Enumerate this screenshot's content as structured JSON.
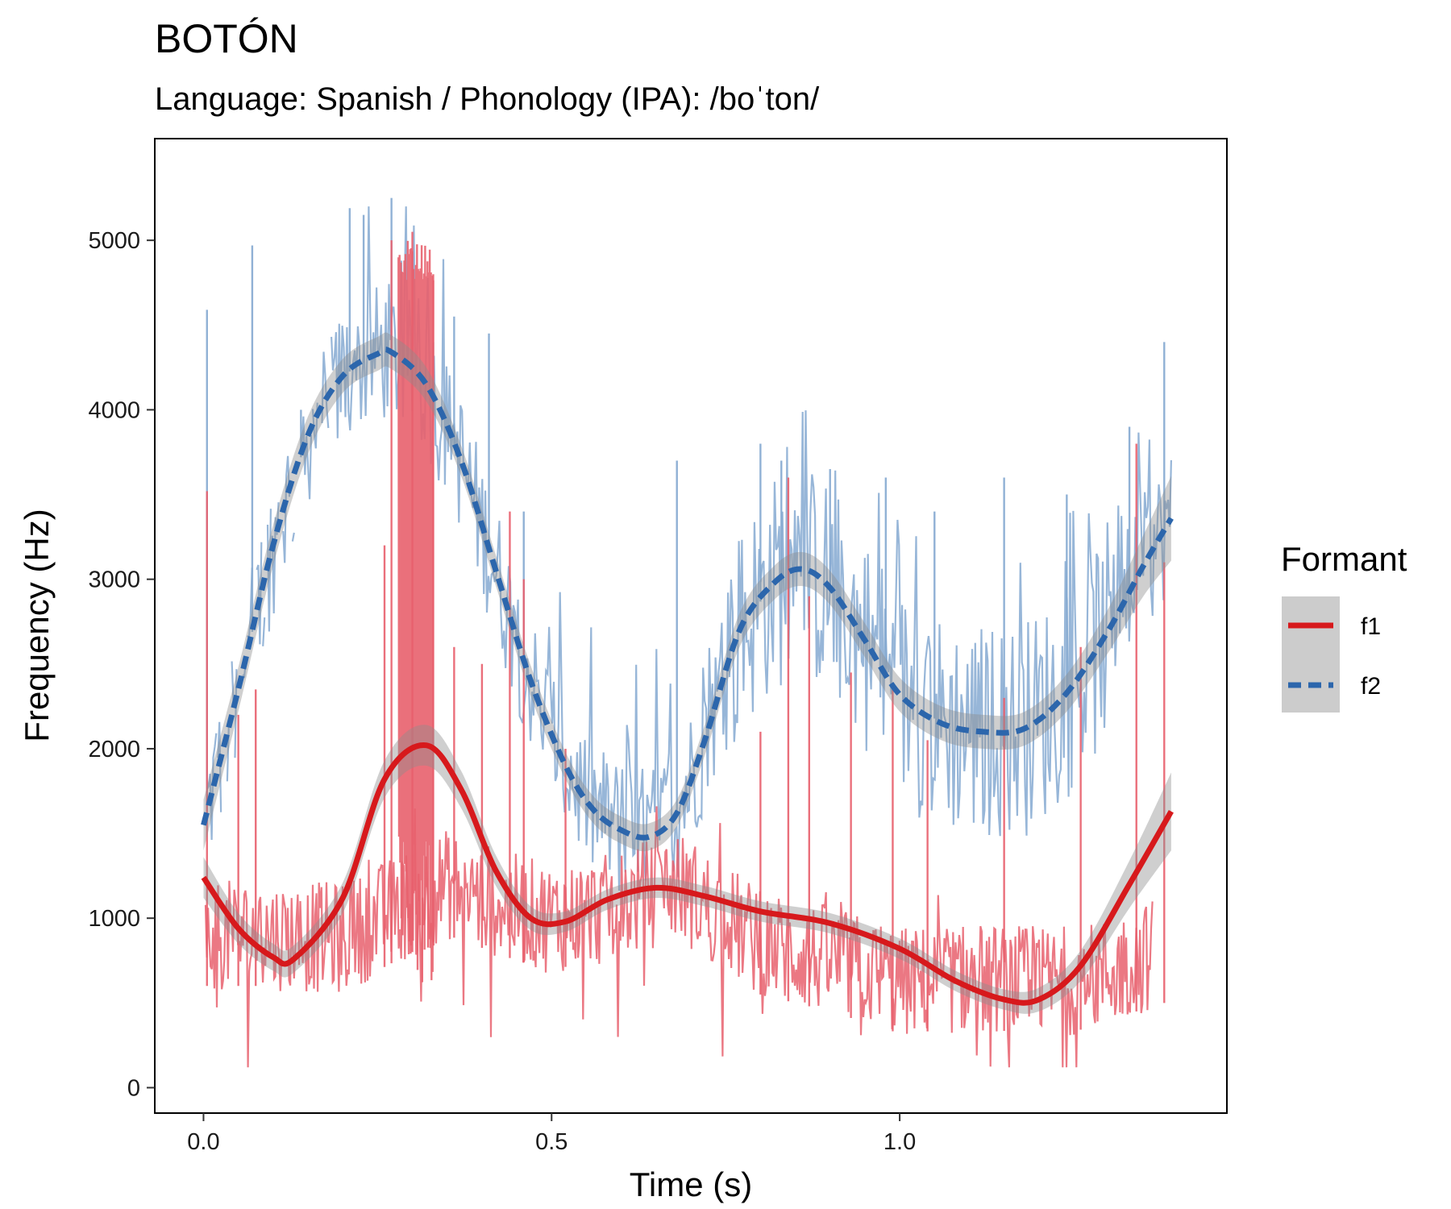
{
  "chart_data": {
    "type": "line",
    "title": "BOTÓN",
    "subtitle": "Language: Spanish / Phonology (IPA): /boˈton/",
    "xlabel": "Time (s)",
    "ylabel": "Frequency (Hz)",
    "xlim": [
      -0.07,
      1.47
    ],
    "ylim": [
      -150,
      5600
    ],
    "x_ticks": [
      0.0,
      0.5,
      1.0
    ],
    "x_tick_labels": [
      "0.0",
      "0.5",
      "1.0"
    ],
    "y_ticks": [
      0,
      1000,
      2000,
      3000,
      4000,
      5000
    ],
    "y_tick_labels": [
      "0",
      "1000",
      "2000",
      "3000",
      "4000",
      "5000"
    ],
    "grid": false,
    "legend": {
      "title": "Formant",
      "position": "right"
    },
    "colors": {
      "f1_line": "#d7191c",
      "f1_raw": "#e8606d",
      "f2_line": "#2c66ac",
      "f2_raw": "#85a9d1",
      "ribbon": "#8c8c8c"
    },
    "series": [
      {
        "name": "f1",
        "style": "solid",
        "smooth": {
          "x": [
            0.0,
            0.05,
            0.1,
            0.13,
            0.2,
            0.26,
            0.32,
            0.37,
            0.42,
            0.47,
            0.52,
            0.58,
            0.65,
            0.72,
            0.8,
            0.9,
            1.0,
            1.08,
            1.15,
            1.2,
            1.26,
            1.33,
            1.39
          ],
          "y": [
            1240,
            940,
            770,
            760,
            1120,
            1820,
            2020,
            1760,
            1280,
            1000,
            980,
            1110,
            1180,
            1130,
            1040,
            970,
            820,
            630,
            520,
            520,
            720,
            1200,
            1630
          ],
          "ci": [
            120,
            90,
            80,
            80,
            90,
            110,
            120,
            110,
            90,
            70,
            60,
            60,
            60,
            60,
            60,
            60,
            60,
            60,
            60,
            70,
            90,
            140,
            230
          ]
        },
        "raw": {
          "base": [
            [
              0.0,
              900
            ],
            [
              0.1,
              900
            ],
            [
              0.2,
              880
            ],
            [
              0.3,
              1100
            ],
            [
              0.35,
              1200
            ],
            [
              0.45,
              1050
            ],
            [
              0.5,
              1000
            ],
            [
              0.58,
              1050
            ],
            [
              0.68,
              1200
            ],
            [
              0.8,
              850
            ],
            [
              0.9,
              750
            ],
            [
              1.0,
              620
            ],
            [
              1.1,
              650
            ],
            [
              1.2,
              620
            ],
            [
              1.28,
              650
            ],
            [
              1.37,
              800
            ]
          ],
          "spikes": [
            [
              0.005,
              3520
            ],
            [
              0.05,
              2200
            ],
            [
              0.075,
              2350
            ],
            [
              0.26,
              3200
            ],
            [
              0.27,
              5000
            ],
            [
              0.3,
              5050
            ],
            [
              0.33,
              4800
            ],
            [
              0.36,
              2600
            ],
            [
              0.4,
              2500
            ],
            [
              0.44,
              3400
            ],
            [
              0.46,
              3000
            ],
            [
              0.52,
              2000
            ],
            [
              0.8,
              2100
            ],
            [
              0.84,
              3600
            ],
            [
              0.87,
              2900
            ],
            [
              0.93,
              2450
            ],
            [
              0.99,
              2350
            ],
            [
              1.04,
              2050
            ],
            [
              1.15,
              2300
            ],
            [
              1.26,
              2600
            ],
            [
              1.34,
              3800
            ],
            [
              1.38,
              3100
            ]
          ],
          "burst": [
            0.28,
            0.33,
            5000
          ]
        }
      },
      {
        "name": "f2",
        "style": "dashed",
        "smooth": {
          "x": [
            0.0,
            0.05,
            0.1,
            0.15,
            0.2,
            0.25,
            0.27,
            0.32,
            0.37,
            0.42,
            0.47,
            0.52,
            0.56,
            0.6,
            0.64,
            0.68,
            0.72,
            0.77,
            0.82,
            0.86,
            0.9,
            0.95,
            1.0,
            1.06,
            1.12,
            1.18,
            1.24,
            1.3,
            1.35,
            1.39
          ],
          "y": [
            1550,
            2350,
            3200,
            3850,
            4200,
            4330,
            4340,
            4150,
            3700,
            3050,
            2400,
            1900,
            1640,
            1520,
            1480,
            1620,
            2050,
            2700,
            2980,
            3060,
            2950,
            2640,
            2320,
            2150,
            2100,
            2120,
            2330,
            2700,
            3080,
            3360
          ],
          "ci": [
            150,
            130,
            120,
            110,
            100,
            100,
            100,
            100,
            90,
            90,
            90,
            80,
            80,
            80,
            80,
            80,
            90,
            100,
            100,
            100,
            100,
            100,
            100,
            100,
            100,
            100,
            110,
            130,
            180,
            250
          ]
        },
        "raw": {
          "spikes": [
            [
              0.005,
              4590
            ],
            [
              0.07,
              4970
            ],
            [
              0.14,
              4000
            ],
            [
              0.21,
              5190
            ],
            [
              0.23,
              5150
            ],
            [
              0.27,
              5250
            ],
            [
              0.33,
              4400
            ],
            [
              0.36,
              4550
            ],
            [
              0.41,
              4450
            ],
            [
              0.46,
              3400
            ],
            [
              0.68,
              3700
            ],
            [
              0.8,
              3800
            ],
            [
              0.83,
              3700
            ],
            [
              0.9,
              3650
            ],
            [
              0.98,
              3600
            ],
            [
              1.05,
              3400
            ],
            [
              1.15,
              3600
            ],
            [
              1.24,
              3500
            ],
            [
              1.33,
              3900
            ],
            [
              1.38,
              4400
            ]
          ]
        }
      }
    ]
  }
}
